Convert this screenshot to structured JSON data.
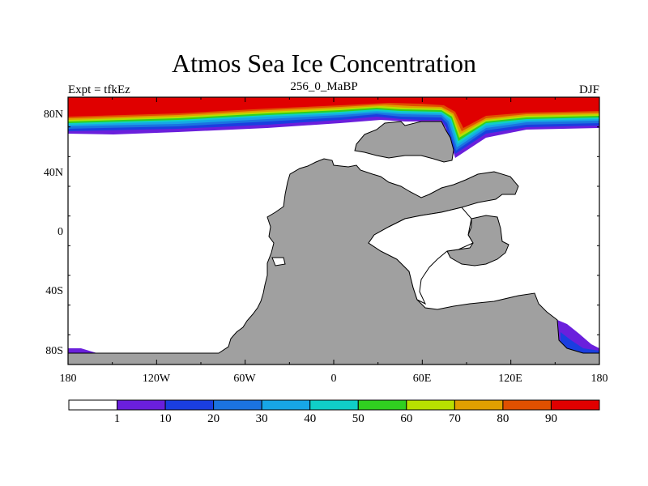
{
  "title": "Atmos Sea Ice Concentration",
  "experiment": "Expt = tfkEz",
  "period": "256_0_MaBP",
  "season": "DJF",
  "lat_labels": [
    "80N",
    "40N",
    "0",
    "40S",
    "80S"
  ],
  "lon_labels": [
    "180",
    "120W",
    "60W",
    "0",
    "60E",
    "120E",
    "180"
  ],
  "colorbar": {
    "labels": [
      "1",
      "10",
      "20",
      "30",
      "40",
      "50",
      "60",
      "70",
      "80",
      "90"
    ],
    "colors": [
      "#ffffff",
      "#6a1fdc",
      "#1a3ee0",
      "#1b73e0",
      "#17a6e6",
      "#10cfc8",
      "#30d020",
      "#b8e000",
      "#e0a000",
      "#e05000",
      "#e00000"
    ]
  },
  "land_color": "#a0a0a0"
}
